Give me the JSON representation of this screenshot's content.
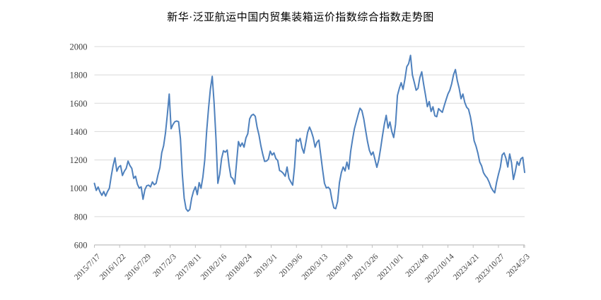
{
  "title": "新华·泛亚航运中国内贸集装箱运价指数综合指数走势图",
  "chart_data": {
    "type": "line",
    "title": "新华·泛亚航运中国内贸集装箱运价指数综合指数走势图",
    "series_name": "综合指数",
    "x_labels": [
      "2015/7/17",
      "2016/1/22",
      "2016/7/29",
      "2017/2/3",
      "2017/8/11",
      "2018/2/16",
      "2018/8/24",
      "2019/3/1",
      "2019/9/6",
      "2020/3/13",
      "2020/9/18",
      "2021/3/26",
      "2021/10/1",
      "2022/4/8",
      "2022/10/14",
      "2023/4/21",
      "2023/10/27",
      "2024/5/3"
    ],
    "label_interval_weeks": 27,
    "week_step": 2,
    "values": [
      1035,
      985,
      1009,
      975,
      950,
      977,
      945,
      977,
      1000,
      1085,
      1160,
      1215,
      1120,
      1150,
      1160,
      1090,
      1120,
      1140,
      1192,
      1160,
      1140,
      1070,
      1085,
      1028,
      1000,
      1010,
      922,
      990,
      1018,
      1022,
      1010,
      1045,
      1025,
      1035,
      1095,
      1145,
      1250,
      1300,
      1390,
      1520,
      1665,
      1420,
      1450,
      1470,
      1475,
      1470,
      1350,
      1100,
      930,
      855,
      838,
      850,
      930,
      980,
      1010,
      955,
      1040,
      1000,
      1080,
      1200,
      1400,
      1560,
      1700,
      1790,
      1600,
      1350,
      1035,
      1100,
      1210,
      1265,
      1255,
      1270,
      1160,
      1080,
      1068,
      1030,
      1180,
      1330,
      1295,
      1320,
      1290,
      1355,
      1385,
      1490,
      1515,
      1522,
      1508,
      1430,
      1375,
      1300,
      1240,
      1190,
      1192,
      1205,
      1262,
      1235,
      1250,
      1210,
      1196,
      1125,
      1118,
      1105,
      1085,
      1150,
      1070,
      1045,
      1022,
      1150,
      1345,
      1330,
      1352,
      1285,
      1248,
      1320,
      1395,
      1432,
      1400,
      1357,
      1290,
      1325,
      1340,
      1235,
      1130,
      1035,
      1002,
      1008,
      992,
      918,
      862,
      856,
      905,
      1040,
      1110,
      1150,
      1122,
      1185,
      1135,
      1260,
      1345,
      1420,
      1470,
      1520,
      1565,
      1548,
      1490,
      1408,
      1330,
      1268,
      1235,
      1256,
      1202,
      1148,
      1200,
      1280,
      1370,
      1452,
      1515,
      1425,
      1468,
      1400,
      1358,
      1452,
      1655,
      1705,
      1745,
      1698,
      1770,
      1858,
      1880,
      1938,
      1800,
      1748,
      1692,
      1705,
      1782,
      1822,
      1735,
      1658,
      1576,
      1612,
      1542,
      1575,
      1512,
      1505,
      1562,
      1548,
      1536,
      1582,
      1625,
      1665,
      1692,
      1738,
      1802,
      1838,
      1760,
      1706,
      1632,
      1665,
      1606,
      1572,
      1558,
      1505,
      1428,
      1335,
      1298,
      1248,
      1185,
      1158,
      1110,
      1088,
      1072,
      1044,
      1008,
      985,
      968,
      1042,
      1098,
      1148,
      1235,
      1250,
      1212,
      1150,
      1242,
      1180,
      1062,
      1118,
      1188,
      1162,
      1208,
      1218,
      1112
    ],
    "ylim": [
      600,
      2000
    ],
    "y_ticks": [
      600,
      800,
      1000,
      1200,
      1400,
      1600,
      1800,
      2000
    ],
    "grid": true,
    "legend_position": "none",
    "line_color": "#4F81BD",
    "grid_color": "#D9D9D9",
    "axis_color": "#BFBFBF",
    "label_color": "#404040",
    "title_color": "#000000",
    "background_color": "#FFFFFF"
  }
}
